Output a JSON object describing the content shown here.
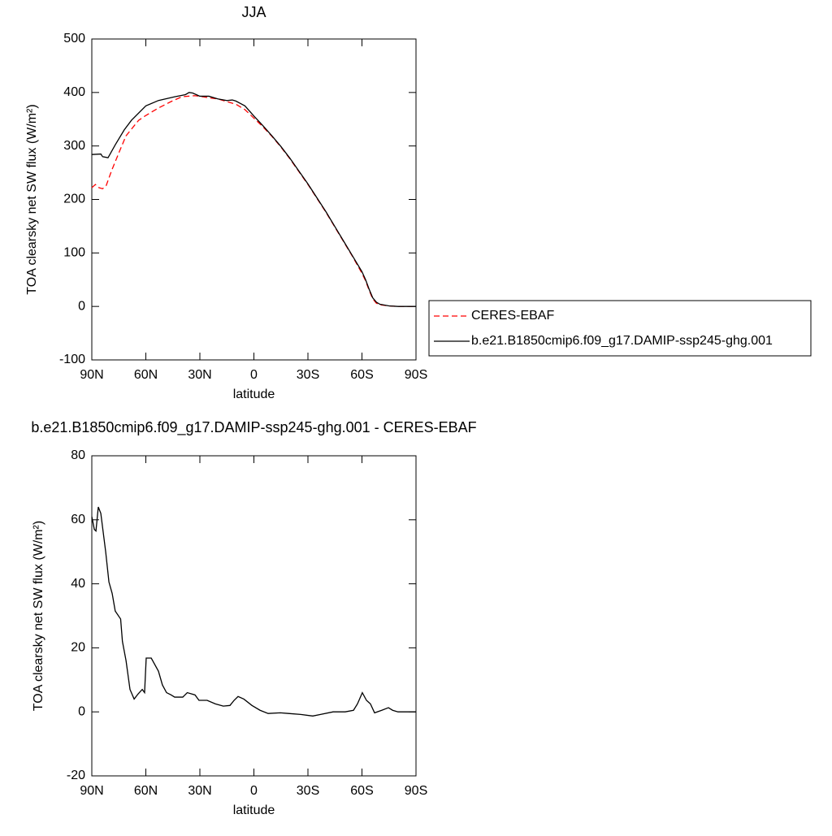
{
  "chart_data": [
    {
      "type": "line",
      "title": "JJA",
      "xlabel": "latitude",
      "ylabel": "TOA clearsky net SW flux (W/m²)",
      "xlim": [
        90,
        -90
      ],
      "xticks": [
        {
          "value": 90,
          "label": "90N"
        },
        {
          "value": 60,
          "label": "60N"
        },
        {
          "value": 30,
          "label": "30N"
        },
        0,
        {
          "value": -30,
          "label": "30S"
        },
        {
          "value": -60,
          "label": "60S"
        },
        {
          "value": -90,
          "label": "90S"
        }
      ],
      "ylim": [
        -100,
        500
      ],
      "yticks": [
        -100,
        0,
        100,
        200,
        300,
        400,
        500
      ],
      "legend": "right",
      "series": [
        {
          "name": "CERES-EBAF",
          "color": "#ff0000",
          "dashed": true,
          "x": [
            90,
            88,
            86,
            84,
            82,
            79,
            75,
            71,
            64,
            60,
            53,
            46,
            40,
            33,
            30,
            25,
            20,
            15,
            10,
            5,
            0,
            -5,
            -10,
            -15,
            -20,
            -25,
            -30,
            -35,
            -40,
            -45,
            -50,
            -55,
            -60,
            -62,
            -64,
            -66,
            -68,
            -70,
            -75,
            -80,
            -85,
            -90
          ],
          "values": [
            222,
            228,
            222,
            220,
            226,
            254,
            287,
            319,
            348,
            357,
            371,
            383,
            392,
            394,
            393,
            390,
            388,
            383,
            378,
            368,
            352,
            336,
            318,
            298,
            276,
            252,
            228,
            202,
            176,
            148,
            120,
            92,
            62,
            48,
            30,
            14,
            6,
            3,
            1,
            0,
            0,
            0
          ]
        },
        {
          "name": "b.e21.B1850cmip6.f09_g17.DAMIP-ssp245-ghg.001",
          "color": "#000000",
          "dashed": false,
          "x": [
            90,
            85,
            84,
            81,
            77,
            72,
            68,
            60,
            53,
            44,
            38,
            36,
            34,
            30,
            25,
            20,
            15,
            12,
            10,
            5,
            0,
            -5,
            -10,
            -15,
            -20,
            -25,
            -30,
            -35,
            -40,
            -45,
            -50,
            -55,
            -60,
            -62,
            -64,
            -66,
            -68,
            -70,
            -75,
            -80,
            -85,
            -90
          ],
          "values": [
            284,
            285,
            280,
            278,
            302,
            330,
            348,
            375,
            385,
            392,
            396,
            400,
            399,
            393,
            393,
            388,
            385,
            386,
            384,
            375,
            356,
            338,
            319,
            299,
            277,
            253,
            229,
            203,
            177,
            149,
            121,
            93,
            65,
            50,
            32,
            16,
            8,
            4,
            1,
            0,
            0,
            0
          ]
        }
      ]
    },
    {
      "type": "line",
      "title": "b.e21.B1850cmip6.f09_g17.DAMIP-ssp245-ghg.001 - CERES-EBAF",
      "xlabel": "latitude",
      "ylabel": "TOA clearsky net SW flux (W/m²)",
      "xlim": [
        90,
        -90
      ],
      "xticks": [
        {
          "value": 90,
          "label": "90N"
        },
        {
          "value": 60,
          "label": "60N"
        },
        {
          "value": 30,
          "label": "30N"
        },
        0,
        {
          "value": -30,
          "label": "30S"
        },
        {
          "value": -60,
          "label": "60S"
        },
        {
          "value": -90,
          "label": "90S"
        }
      ],
      "ylim": [
        -20,
        80
      ],
      "yticks": [
        -20,
        0,
        20,
        40,
        60,
        80
      ],
      "series": [
        {
          "color": "#000000",
          "dashed": false,
          "x": [
            90,
            88.6,
            87.7,
            86.4,
            85,
            82.3,
            80.5,
            78.7,
            77,
            74,
            73,
            71,
            68.8,
            66.5,
            64.3,
            62,
            60.7,
            59.8,
            57,
            53,
            50.8,
            48.5,
            46,
            44,
            39.5,
            37,
            32.7,
            30.5,
            26,
            21.4,
            17,
            13.3,
            11,
            8.8,
            5.6,
            1.1,
            -3.4,
            -7.9,
            -14.7,
            -19.2,
            -26,
            -32.7,
            -37,
            -44,
            -50.7,
            -55.3,
            -57.5,
            -60.2,
            -62.5,
            -64.7,
            -67,
            -71,
            -74.7,
            -77,
            -80,
            -90
          ],
          "values": [
            61,
            57,
            56.5,
            64,
            62,
            50,
            40.6,
            37,
            31.5,
            29,
            22,
            16,
            7,
            4,
            5.6,
            7,
            6,
            16.8,
            16.8,
            12.7,
            8.4,
            6,
            5.3,
            4.6,
            4.6,
            6,
            5.3,
            3.6,
            3.6,
            2.5,
            1.8,
            2,
            3.6,
            4.8,
            4,
            2,
            0.5,
            -0.5,
            -0.3,
            -0.5,
            -0.8,
            -1.3,
            -0.8,
            0,
            0,
            0.5,
            2.5,
            6,
            3.6,
            2.5,
            -0.3,
            0.5,
            1.3,
            0.5,
            0,
            0
          ]
        }
      ]
    }
  ]
}
